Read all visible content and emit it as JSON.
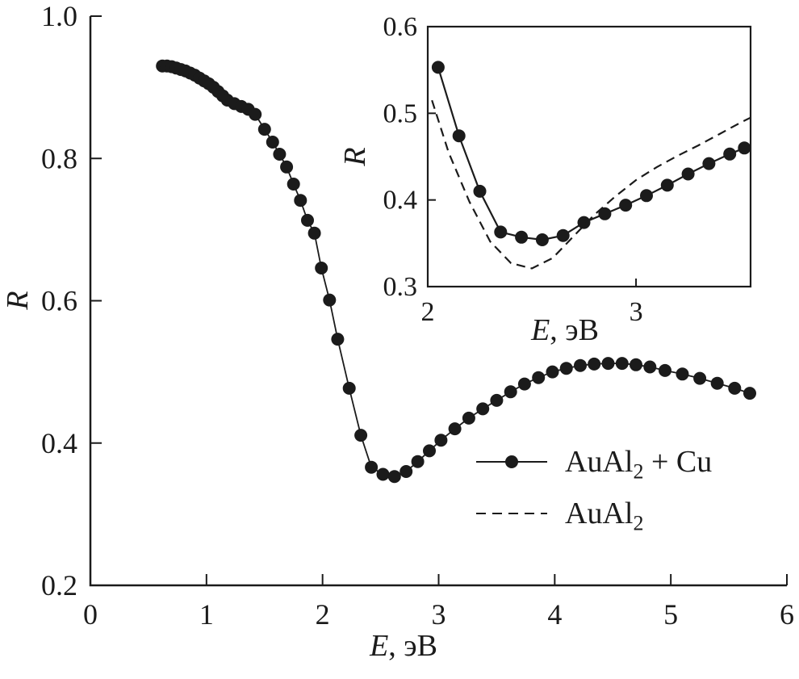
{
  "figure": {
    "ink_color": "#1b1b1b",
    "background_color": "#ffffff"
  },
  "main_axis": {
    "xlabel_var": "E",
    "xlabel_unit": ", эВ",
    "ylabel": "R"
  },
  "inset_axis": {
    "xlabel_var": "E",
    "xlabel_unit": ", эВ",
    "ylabel": "R"
  },
  "legend": {
    "items": [
      {
        "style": "solid-with-markers",
        "label_base": "AuAl",
        "label_sub": "2",
        "label_rest": " + Cu"
      },
      {
        "style": "dashed",
        "label_base": "AuAl",
        "label_sub": "2",
        "label_rest": ""
      }
    ]
  },
  "chart_data": [
    {
      "id": "main",
      "type": "line",
      "title": "",
      "xlabel": "E, эВ",
      "ylabel": "R",
      "xlim": [
        0,
        6
      ],
      "ylim": [
        0.2,
        1.0
      ],
      "xticks": [
        0,
        1,
        2,
        3,
        4,
        5,
        6
      ],
      "xtick_labels": [
        "0",
        "1",
        "2",
        "3",
        "4",
        "5",
        "6"
      ],
      "yticks": [
        0.2,
        0.4,
        0.6,
        0.8,
        1.0
      ],
      "ytick_labels": [
        "0.2",
        "0.4",
        "0.6",
        "0.8",
        "1.0"
      ],
      "grid": false,
      "legend_position": "inside lower right",
      "series": [
        {
          "name": "AuAl2 + Cu",
          "line": "solid",
          "marker": "circle",
          "points": [
            [
              0.62,
              0.93
            ],
            [
              0.66,
              0.93
            ],
            [
              0.7,
              0.929
            ],
            [
              0.74,
              0.927
            ],
            [
              0.78,
              0.925
            ],
            [
              0.82,
              0.923
            ],
            [
              0.86,
              0.92
            ],
            [
              0.9,
              0.917
            ],
            [
              0.94,
              0.913
            ],
            [
              0.98,
              0.909
            ],
            [
              1.02,
              0.905
            ],
            [
              1.06,
              0.9
            ],
            [
              1.1,
              0.894
            ],
            [
              1.14,
              0.888
            ],
            [
              1.18,
              0.882
            ],
            [
              1.24,
              0.877
            ],
            [
              1.3,
              0.873
            ],
            [
              1.36,
              0.869
            ],
            [
              1.42,
              0.862
            ],
            [
              1.5,
              0.841
            ],
            [
              1.57,
              0.823
            ],
            [
              1.63,
              0.806
            ],
            [
              1.69,
              0.788
            ],
            [
              1.75,
              0.764
            ],
            [
              1.81,
              0.741
            ],
            [
              1.87,
              0.713
            ],
            [
              1.93,
              0.695
            ],
            [
              1.99,
              0.646
            ],
            [
              2.06,
              0.601
            ],
            [
              2.13,
              0.546
            ],
            [
              2.23,
              0.477
            ],
            [
              2.33,
              0.411
            ],
            [
              2.42,
              0.366
            ],
            [
              2.52,
              0.356
            ],
            [
              2.62,
              0.353
            ],
            [
              2.72,
              0.36
            ],
            [
              2.82,
              0.374
            ],
            [
              2.92,
              0.389
            ],
            [
              3.02,
              0.404
            ],
            [
              3.14,
              0.42
            ],
            [
              3.26,
              0.435
            ],
            [
              3.38,
              0.448
            ],
            [
              3.5,
              0.46
            ],
            [
              3.62,
              0.472
            ],
            [
              3.74,
              0.483
            ],
            [
              3.86,
              0.492
            ],
            [
              3.98,
              0.5
            ],
            [
              4.1,
              0.505
            ],
            [
              4.22,
              0.509
            ],
            [
              4.34,
              0.511
            ],
            [
              4.46,
              0.512
            ],
            [
              4.58,
              0.512
            ],
            [
              4.7,
              0.51
            ],
            [
              4.82,
              0.507
            ],
            [
              4.95,
              0.502
            ],
            [
              5.1,
              0.497
            ],
            [
              5.25,
              0.491
            ],
            [
              5.4,
              0.484
            ],
            [
              5.55,
              0.477
            ],
            [
              5.68,
              0.47
            ]
          ]
        }
      ]
    },
    {
      "id": "inset",
      "type": "line",
      "title": "",
      "xlabel": "E, эВ",
      "ylabel": "R",
      "xlim": [
        2.0,
        3.55
      ],
      "ylim": [
        0.3,
        0.6
      ],
      "xticks": [
        2,
        3
      ],
      "xtick_labels": [
        "2",
        "3"
      ],
      "yticks": [
        0.3,
        0.4,
        0.5,
        0.6
      ],
      "ytick_labels": [
        "0.3",
        "0.4",
        "0.5",
        "0.6"
      ],
      "grid": false,
      "series": [
        {
          "name": "AuAl2 + Cu",
          "line": "solid",
          "marker": "circle",
          "points": [
            [
              2.05,
              0.553
            ],
            [
              2.15,
              0.474
            ],
            [
              2.25,
              0.41
            ],
            [
              2.35,
              0.363
            ],
            [
              2.45,
              0.357
            ],
            [
              2.55,
              0.354
            ],
            [
              2.65,
              0.359
            ],
            [
              2.75,
              0.374
            ],
            [
              2.85,
              0.384
            ],
            [
              2.95,
              0.394
            ],
            [
              3.05,
              0.405
            ],
            [
              3.15,
              0.417
            ],
            [
              3.25,
              0.43
            ],
            [
              3.35,
              0.442
            ],
            [
              3.45,
              0.453
            ],
            [
              3.52,
              0.46
            ]
          ]
        },
        {
          "name": "AuAl2",
          "line": "dashed",
          "marker": null,
          "points": [
            [
              2.02,
              0.515
            ],
            [
              2.1,
              0.455
            ],
            [
              2.2,
              0.398
            ],
            [
              2.3,
              0.352
            ],
            [
              2.4,
              0.327
            ],
            [
              2.5,
              0.321
            ],
            [
              2.6,
              0.333
            ],
            [
              2.7,
              0.358
            ],
            [
              2.8,
              0.383
            ],
            [
              2.9,
              0.404
            ],
            [
              3.0,
              0.423
            ],
            [
              3.1,
              0.438
            ],
            [
              3.2,
              0.451
            ],
            [
              3.3,
              0.463
            ],
            [
              3.4,
              0.476
            ],
            [
              3.5,
              0.489
            ],
            [
              3.55,
              0.495
            ]
          ]
        }
      ]
    }
  ]
}
